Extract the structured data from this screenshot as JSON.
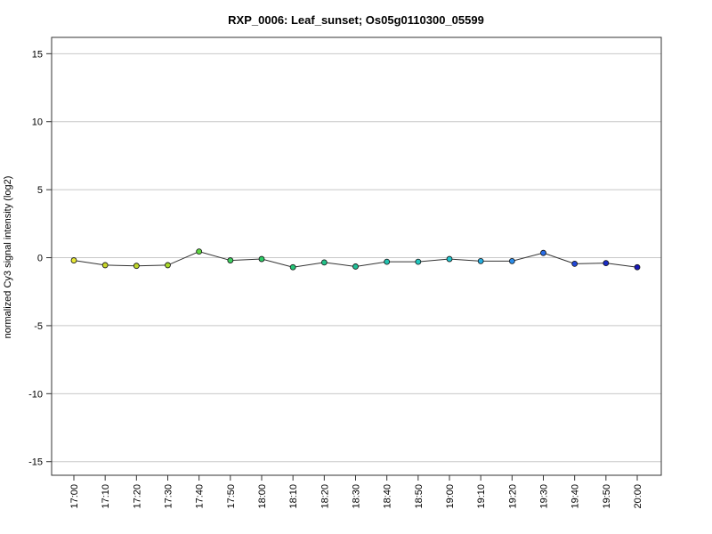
{
  "chart_data": {
    "type": "line",
    "title": "RXP_0006: Leaf_sunset; Os05g0110300_05599",
    "xlabel": "",
    "ylabel": "normalized Cy3 signal intensity (log2)",
    "ylim": [
      -16,
      16.2
    ],
    "yticks": [
      -15,
      -10,
      -5,
      0,
      5,
      10,
      15
    ],
    "grid": true,
    "categories": [
      "17:00",
      "17:10",
      "17:20",
      "17:30",
      "17:40",
      "17:50",
      "18:00",
      "18:10",
      "18:20",
      "18:30",
      "18:40",
      "18:50",
      "19:00",
      "19:10",
      "19:20",
      "19:30",
      "19:40",
      "19:50",
      "20:00"
    ],
    "series": [
      {
        "values": [
          -0.2,
          -0.55,
          -0.6,
          -0.55,
          0.45,
          -0.2,
          -0.1,
          -0.7,
          -0.35,
          -0.65,
          -0.3,
          -0.3,
          -0.1,
          -0.25,
          -0.25,
          0.35,
          -0.45,
          -0.4,
          -0.7
        ],
        "line_color": "#333333",
        "point_colors": [
          "#e8e836",
          "#c8d62a",
          "#c0d82a",
          "#a8d82a",
          "#5ed640",
          "#3fd060",
          "#2ccc66",
          "#26c678",
          "#24c28a",
          "#22c098",
          "#22c2b0",
          "#22c8c0",
          "#22c8d0",
          "#26aee0",
          "#2c8ce8",
          "#2a6ee8",
          "#2248d8",
          "#1a2cc4",
          "#1818b8"
        ]
      }
    ]
  }
}
